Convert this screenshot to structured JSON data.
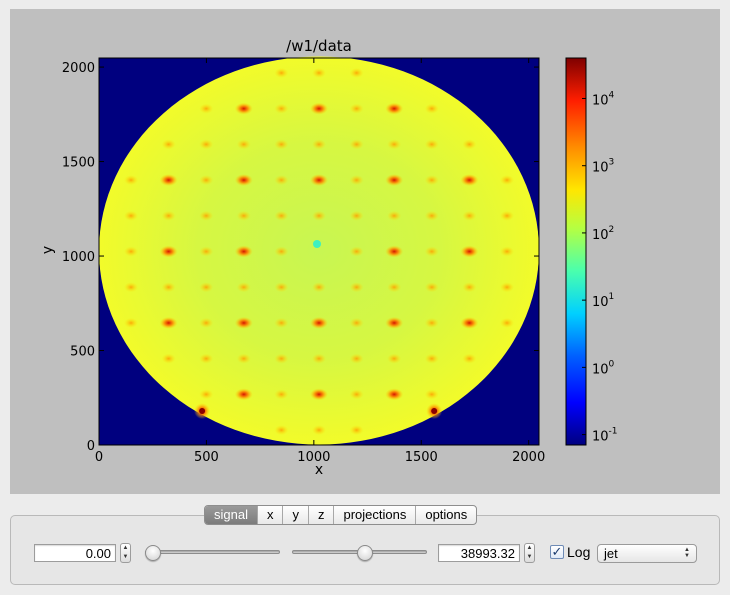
{
  "plot": {
    "title": "/w1/data",
    "xlabel": "x",
    "ylabel": "y"
  },
  "chart_data": {
    "type": "heatmap",
    "title": "/w1/data",
    "xlabel": "x",
    "ylabel": "y",
    "xlim": [
      0,
      2048
    ],
    "ylim": [
      0,
      2048
    ],
    "x_ticks": [
      0,
      500,
      1000,
      1500,
      2000
    ],
    "y_ticks": [
      0,
      500,
      1000,
      1500,
      2000
    ],
    "colorbar": {
      "scale": "log",
      "colormap": "jet",
      "range": [
        0.07,
        40000
      ],
      "ticks": [
        {
          "base": "10",
          "exp": "4",
          "value": 10000
        },
        {
          "base": "10",
          "exp": "3",
          "value": 1000
        },
        {
          "base": "10",
          "exp": "2",
          "value": 100
        },
        {
          "base": "10",
          "exp": "1",
          "value": 10
        },
        {
          "base": "10",
          "exp": "0",
          "value": 1
        },
        {
          "base": "10",
          "exp": "-1",
          "value": 0.1
        }
      ]
    },
    "background_value": 0.07,
    "disk": {
      "center": [
        1024,
        1024
      ],
      "radius": 1024,
      "base_value": 200
    },
    "center_peak": {
      "x": 1024,
      "y": 1048,
      "value": 30
    },
    "bright_peaks": [
      {
        "x": 480,
        "y": 180,
        "value": 40000
      },
      {
        "x": 1560,
        "y": 180,
        "value": 40000
      }
    ]
  },
  "controls": {
    "tabs": [
      {
        "label": "signal",
        "active": true
      },
      {
        "label": "x",
        "active": false
      },
      {
        "label": "y",
        "active": false
      },
      {
        "label": "z",
        "active": false
      },
      {
        "label": "projections",
        "active": false
      },
      {
        "label": "options",
        "active": false
      }
    ],
    "min_value": "0.00",
    "max_value": "38993.32",
    "min_slider": 0.0,
    "max_slider": 0.55,
    "log_label": "Log",
    "log_checked": true,
    "check_glyph": "✓",
    "colormap": "jet"
  }
}
